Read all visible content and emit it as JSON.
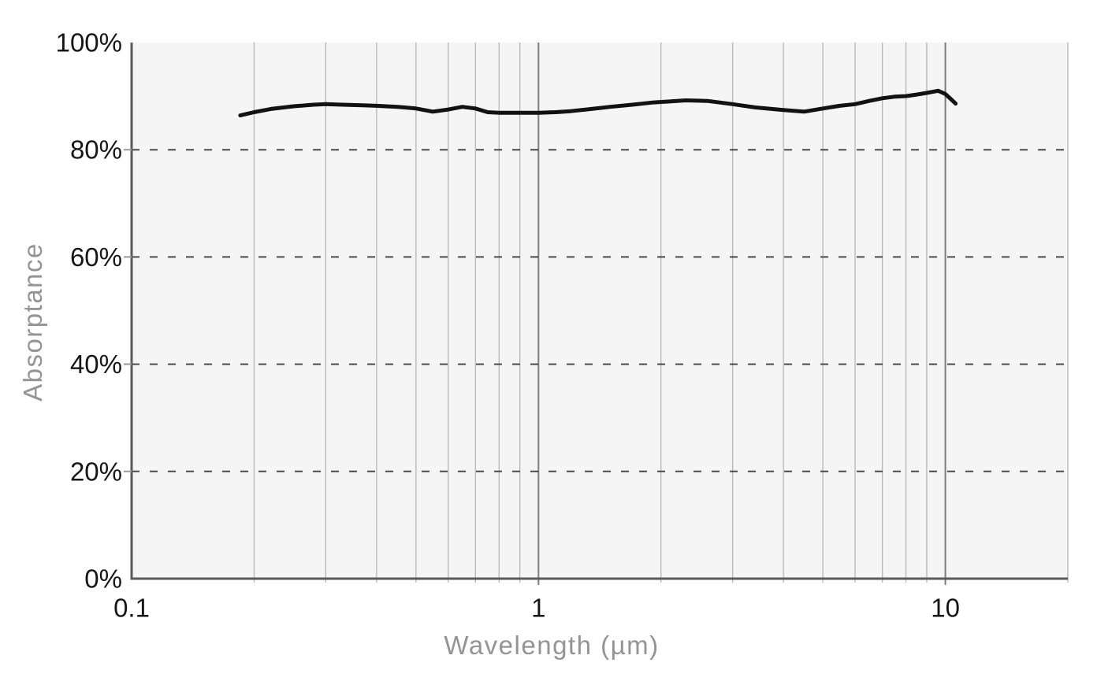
{
  "page": {
    "background": "#ffffff"
  },
  "chart_data": {
    "type": "line",
    "title": "",
    "xlabel": "Wavelength (µm)",
    "ylabel": "Absorptance",
    "x_scale": "log",
    "xlim": [
      0.1,
      20
    ],
    "ylim": [
      0,
      100
    ],
    "grid": "on",
    "legend": "none",
    "x_ticks": [
      {
        "value": 0.1,
        "label": "0.1"
      },
      {
        "value": 1,
        "label": "1"
      },
      {
        "value": 10,
        "label": "10"
      }
    ],
    "x_minor_gridlines": [
      0.2,
      0.3,
      0.4,
      0.5,
      0.6,
      0.7,
      0.8,
      0.9,
      2,
      3,
      4,
      5,
      6,
      7,
      8,
      9,
      20
    ],
    "y_ticks": [
      {
        "value": 0,
        "label": "0%"
      },
      {
        "value": 20,
        "label": "20%"
      },
      {
        "value": 40,
        "label": "40%"
      },
      {
        "value": 60,
        "label": "60%"
      },
      {
        "value": 80,
        "label": "80%"
      },
      {
        "value": 100,
        "label": "100%"
      }
    ],
    "y_dashed_gridlines": [
      20,
      40,
      60,
      80
    ],
    "series": [
      {
        "name": "Absorptance",
        "points": [
          [
            0.185,
            86.4
          ],
          [
            0.2,
            87.0
          ],
          [
            0.22,
            87.6
          ],
          [
            0.25,
            88.1
          ],
          [
            0.28,
            88.4
          ],
          [
            0.3,
            88.5
          ],
          [
            0.33,
            88.4
          ],
          [
            0.37,
            88.3
          ],
          [
            0.4,
            88.2
          ],
          [
            0.45,
            88.0
          ],
          [
            0.5,
            87.7
          ],
          [
            0.55,
            87.1
          ],
          [
            0.6,
            87.5
          ],
          [
            0.65,
            88.0
          ],
          [
            0.7,
            87.7
          ],
          [
            0.75,
            87.0
          ],
          [
            0.8,
            86.9
          ],
          [
            0.9,
            86.9
          ],
          [
            1.0,
            86.9
          ],
          [
            1.1,
            87.0
          ],
          [
            1.2,
            87.2
          ],
          [
            1.35,
            87.6
          ],
          [
            1.5,
            88.0
          ],
          [
            1.7,
            88.4
          ],
          [
            1.9,
            88.8
          ],
          [
            2.1,
            89.0
          ],
          [
            2.3,
            89.2
          ],
          [
            2.6,
            89.1
          ],
          [
            3.0,
            88.5
          ],
          [
            3.4,
            87.9
          ],
          [
            4.0,
            87.4
          ],
          [
            4.5,
            87.1
          ],
          [
            5.0,
            87.7
          ],
          [
            5.5,
            88.2
          ],
          [
            6.0,
            88.5
          ],
          [
            6.5,
            89.1
          ],
          [
            7.0,
            89.6
          ],
          [
            7.5,
            89.9
          ],
          [
            8.0,
            90.0
          ],
          [
            8.5,
            90.3
          ],
          [
            9.0,
            90.6
          ],
          [
            9.6,
            91.0
          ],
          [
            10.0,
            90.4
          ],
          [
            10.3,
            89.5
          ],
          [
            10.6,
            88.6
          ]
        ]
      }
    ],
    "colors": {
      "page_background": "#ffffff",
      "plot_background": "#f5f5f5",
      "minor_gridline": "#b5b5b5",
      "major_gridline": "#7d7d7d",
      "axis_line": "#5a5a5a",
      "dashed_gridline": "#4a4a4a",
      "tick_label": "#161616",
      "axis_title": "#949494",
      "y_tick_mark": "#999999",
      "line": "#121212"
    }
  }
}
